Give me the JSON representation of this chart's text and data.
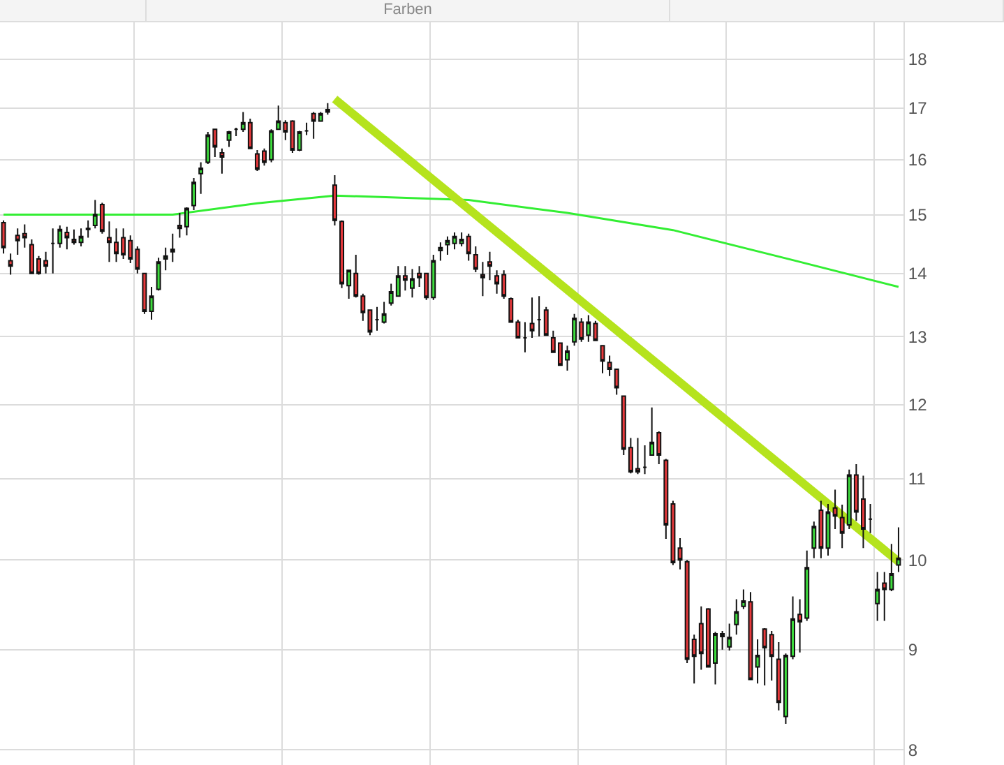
{
  "chart_data": {
    "type": "candlestick",
    "annotations": [
      "Farben"
    ],
    "categories": [
      null,
      null,
      null,
      null,
      null,
      null,
      null,
      null,
      null,
      null,
      null,
      null,
      null,
      null,
      null,
      null,
      null,
      null,
      null,
      null,
      null,
      null,
      null,
      null,
      null,
      null,
      null,
      null,
      null,
      null,
      null,
      null,
      null,
      null,
      null,
      null,
      null,
      null,
      null,
      null,
      null,
      null,
      null,
      null,
      null,
      null,
      null,
      null,
      null,
      null,
      null,
      null,
      null,
      null,
      null,
      null,
      null,
      null,
      null,
      null,
      null,
      null,
      null,
      null,
      null,
      null,
      null,
      null,
      null,
      null,
      null,
      null,
      null,
      null,
      null,
      null,
      null,
      null,
      null,
      null,
      null,
      null,
      null,
      null,
      null,
      null,
      null,
      null,
      null,
      null,
      null,
      null,
      null,
      null,
      null,
      null,
      null,
      null,
      null,
      null,
      null,
      null,
      null,
      null,
      null,
      null,
      null,
      null,
      null,
      null,
      null,
      null,
      null,
      null,
      null,
      null,
      null,
      null,
      null,
      null,
      null,
      null,
      null,
      null,
      null,
      null,
      null,
      null
    ],
    "ohlc": [
      [
        14.86,
        14.9,
        14.33,
        14.43
      ],
      [
        14.21,
        14.33,
        13.98,
        14.12
      ],
      [
        14.64,
        14.76,
        14.31,
        14.55
      ],
      [
        14.67,
        14.83,
        14.43,
        14.6
      ],
      [
        14.48,
        14.57,
        14.0,
        14.0
      ],
      [
        14.24,
        14.29,
        13.98,
        14.0
      ],
      [
        14.21,
        14.36,
        14.0,
        14.12
      ],
      [
        14.5,
        14.76,
        14.0,
        14.5
      ],
      [
        14.5,
        14.81,
        14.43,
        14.74
      ],
      [
        14.69,
        14.79,
        14.4,
        14.6
      ],
      [
        14.57,
        14.74,
        14.48,
        14.52
      ],
      [
        14.52,
        14.76,
        14.45,
        14.62
      ],
      [
        14.74,
        14.9,
        14.6,
        14.76
      ],
      [
        14.81,
        15.26,
        14.76,
        15.0
      ],
      [
        15.18,
        15.21,
        14.67,
        14.71
      ],
      [
        14.6,
        14.88,
        14.19,
        14.52
      ],
      [
        14.52,
        14.76,
        14.19,
        14.33
      ],
      [
        14.6,
        14.76,
        14.24,
        14.31
      ],
      [
        14.55,
        14.64,
        14.17,
        14.24
      ],
      [
        14.4,
        14.45,
        14.0,
        14.07
      ],
      [
        14.0,
        14.0,
        13.35,
        13.39
      ],
      [
        13.39,
        13.78,
        13.26,
        13.63
      ],
      [
        13.74,
        14.26,
        13.72,
        14.19
      ],
      [
        14.24,
        14.43,
        14.05,
        14.29
      ],
      [
        14.4,
        14.67,
        14.19,
        14.36
      ],
      [
        14.81,
        15.03,
        14.6,
        14.76
      ],
      [
        14.79,
        15.13,
        14.64,
        15.11
      ],
      [
        15.16,
        15.66,
        15.08,
        15.58
      ],
      [
        15.74,
        15.95,
        15.37,
        15.84
      ],
      [
        15.95,
        16.53,
        15.92,
        16.47
      ],
      [
        16.58,
        16.58,
        16.05,
        16.24
      ],
      [
        16.13,
        16.21,
        15.74,
        16.05
      ],
      [
        16.37,
        16.55,
        16.24,
        16.53
      ],
      [
        16.58,
        16.61,
        16.45,
        16.58
      ],
      [
        16.58,
        16.92,
        16.53,
        16.71
      ],
      [
        16.71,
        16.79,
        16.21,
        16.21
      ],
      [
        16.11,
        16.18,
        15.79,
        15.82
      ],
      [
        16.16,
        16.21,
        15.89,
        15.95
      ],
      [
        16.0,
        16.58,
        15.95,
        16.55
      ],
      [
        16.58,
        17.05,
        16.58,
        16.74
      ],
      [
        16.71,
        16.76,
        16.37,
        16.53
      ],
      [
        16.74,
        16.76,
        16.13,
        16.18
      ],
      [
        16.18,
        16.55,
        16.16,
        16.53
      ],
      [
        16.55,
        16.71,
        16.47,
        16.55
      ],
      [
        16.89,
        16.92,
        16.4,
        16.74
      ],
      [
        16.74,
        16.92,
        16.74,
        16.89
      ],
      [
        16.92,
        17.1,
        16.87,
        16.97
      ],
      [
        15.53,
        15.71,
        14.81,
        14.9
      ],
      [
        14.88,
        14.9,
        13.76,
        13.83
      ],
      [
        13.8,
        14.05,
        13.59,
        14.05
      ],
      [
        14.0,
        14.31,
        13.61,
        13.63
      ],
      [
        13.63,
        13.67,
        13.24,
        13.37
      ],
      [
        13.41,
        13.41,
        13.02,
        13.07
      ],
      [
        13.26,
        13.46,
        13.09,
        13.26
      ],
      [
        13.22,
        13.54,
        13.2,
        13.35
      ],
      [
        13.52,
        13.83,
        13.48,
        13.7
      ],
      [
        13.63,
        14.12,
        13.63,
        13.96
      ],
      [
        13.96,
        14.12,
        13.72,
        13.89
      ],
      [
        13.76,
        14.07,
        13.61,
        13.91
      ],
      [
        14.0,
        14.12,
        13.78,
        13.93
      ],
      [
        14.0,
        14.0,
        13.57,
        13.61
      ],
      [
        13.61,
        14.31,
        13.57,
        14.21
      ],
      [
        14.38,
        14.52,
        14.21,
        14.43
      ],
      [
        14.48,
        14.62,
        14.31,
        14.55
      ],
      [
        14.5,
        14.69,
        14.4,
        14.62
      ],
      [
        14.5,
        14.69,
        14.45,
        14.57
      ],
      [
        14.62,
        14.67,
        14.21,
        14.33
      ],
      [
        14.31,
        14.45,
        14.02,
        14.07
      ],
      [
        13.98,
        14.19,
        13.63,
        13.93
      ],
      [
        14.19,
        14.36,
        13.89,
        14.12
      ],
      [
        13.96,
        14.05,
        13.67,
        13.83
      ],
      [
        13.98,
        14.05,
        13.59,
        13.63
      ],
      [
        13.59,
        13.61,
        13.22,
        13.22
      ],
      [
        13.22,
        13.26,
        12.98,
        12.98
      ],
      [
        12.98,
        13.22,
        12.76,
        12.98
      ],
      [
        13.2,
        13.61,
        12.98,
        13.09
      ],
      [
        13.26,
        13.63,
        13.0,
        13.26
      ],
      [
        13.41,
        13.46,
        13.02,
        13.02
      ],
      [
        12.98,
        13.09,
        12.76,
        12.76
      ],
      [
        12.9,
        12.9,
        12.57,
        12.57
      ],
      [
        12.65,
        12.86,
        12.49,
        12.78
      ],
      [
        12.92,
        13.35,
        12.86,
        13.28
      ],
      [
        13.22,
        13.28,
        12.92,
        12.96
      ],
      [
        13.02,
        13.33,
        12.92,
        13.22
      ],
      [
        13.2,
        13.24,
        12.94,
        12.94
      ],
      [
        12.86,
        12.86,
        12.45,
        12.63
      ],
      [
        12.61,
        12.71,
        12.41,
        12.51
      ],
      [
        12.51,
        12.51,
        12.14,
        12.24
      ],
      [
        12.12,
        12.12,
        11.31,
        11.39
      ],
      [
        11.41,
        11.54,
        11.07,
        11.09
      ],
      [
        11.13,
        11.54,
        11.06,
        11.09
      ],
      [
        11.15,
        11.44,
        11.06,
        11.15
      ],
      [
        11.31,
        11.96,
        11.3,
        11.48
      ],
      [
        11.61,
        11.63,
        11.19,
        11.31
      ],
      [
        11.24,
        11.26,
        10.25,
        10.42
      ],
      [
        10.68,
        10.72,
        9.94,
        9.97
      ],
      [
        10.14,
        10.26,
        9.89,
        10.0
      ],
      [
        9.98,
        10.0,
        8.86,
        8.9
      ],
      [
        9.11,
        9.16,
        8.65,
        8.93
      ],
      [
        9.28,
        9.47,
        8.79,
        8.96
      ],
      [
        9.44,
        9.45,
        8.82,
        8.82
      ],
      [
        8.86,
        9.19,
        8.64,
        9.17
      ],
      [
        9.14,
        9.2,
        9.0,
        9.17
      ],
      [
        9.03,
        9.28,
        8.99,
        9.13
      ],
      [
        9.27,
        9.55,
        9.16,
        9.41
      ],
      [
        9.47,
        9.66,
        9.44,
        9.53
      ],
      [
        9.52,
        9.63,
        8.69,
        8.69
      ],
      [
        8.82,
        9.11,
        8.65,
        8.94
      ],
      [
        9.22,
        9.23,
        8.63,
        9.02
      ],
      [
        9.16,
        9.2,
        8.68,
        8.93
      ],
      [
        8.9,
        9.08,
        8.38,
        8.46
      ],
      [
        8.32,
        8.96,
        8.25,
        8.94
      ],
      [
        8.93,
        9.58,
        8.9,
        9.33
      ],
      [
        9.38,
        9.55,
        8.97,
        9.3
      ],
      [
        9.34,
        10.11,
        9.31,
        9.91
      ],
      [
        10.14,
        10.46,
        10.02,
        10.4
      ],
      [
        10.6,
        10.72,
        10.02,
        10.14
      ],
      [
        10.14,
        10.68,
        10.05,
        10.58
      ],
      [
        10.63,
        10.86,
        10.37,
        10.53
      ],
      [
        10.51,
        10.67,
        10.14,
        10.32
      ],
      [
        10.42,
        11.12,
        10.37,
        11.05
      ],
      [
        11.05,
        11.19,
        10.47,
        10.58
      ],
      [
        10.74,
        11.04,
        10.14,
        10.37
      ],
      [
        10.49,
        10.68,
        10.32,
        10.49
      ],
      [
        9.5,
        9.86,
        9.31,
        9.66
      ],
      [
        9.73,
        9.86,
        9.31,
        9.66
      ],
      [
        9.66,
        10.19,
        9.64,
        9.84
      ],
      [
        9.94,
        10.39,
        9.86,
        10.02
      ]
    ],
    "series": [
      {
        "type": "line",
        "color": "#33ee33",
        "values": [
          15.0,
          null,
          null,
          null,
          null,
          null,
          null,
          null,
          null,
          null,
          null,
          null,
          null,
          null,
          null,
          null,
          null,
          null,
          null,
          null,
          null,
          null,
          null,
          null,
          15.0,
          null,
          null,
          null,
          null,
          null,
          null,
          null,
          null,
          null,
          null,
          null,
          15.2,
          null,
          null,
          null,
          null,
          null,
          null,
          null,
          null,
          null,
          null,
          15.34,
          null,
          null,
          null,
          null,
          null,
          null,
          null,
          null,
          null,
          null,
          null,
          null,
          null,
          null,
          null,
          null,
          null,
          null,
          15.26,
          null,
          null,
          null,
          null,
          null,
          null,
          null,
          null,
          null,
          null,
          null,
          null,
          null,
          15.03,
          null,
          null,
          null,
          null,
          null,
          null,
          null,
          null,
          null,
          null,
          null,
          null,
          null,
          null,
          14.73,
          null,
          null,
          null,
          null,
          null,
          null,
          null,
          null,
          null,
          null,
          null,
          null,
          null,
          null,
          null,
          null,
          14.22,
          null,
          null,
          null,
          null,
          null,
          null,
          null,
          null,
          null,
          null,
          null,
          null,
          null,
          null,
          13.78
        ]
      },
      {
        "type": "line",
        "color": "#b5e31d",
        "values": [
          null,
          null,
          null,
          null,
          null,
          null,
          null,
          null,
          null,
          null,
          null,
          null,
          null,
          null,
          null,
          null,
          null,
          null,
          null,
          null,
          null,
          null,
          null,
          null,
          null,
          null,
          null,
          null,
          null,
          null,
          null,
          null,
          null,
          null,
          null,
          null,
          null,
          null,
          null,
          null,
          null,
          null,
          null,
          null,
          null,
          null,
          null,
          17.18,
          null,
          null,
          null,
          null,
          null,
          null,
          null,
          null,
          null,
          null,
          null,
          null,
          null,
          null,
          null,
          null,
          null,
          null,
          null,
          null,
          null,
          null,
          null,
          null,
          null,
          null,
          null,
          null,
          null,
          null,
          null,
          null,
          null,
          null,
          null,
          null,
          null,
          null,
          null,
          null,
          null,
          null,
          null,
          null,
          null,
          null,
          null,
          null,
          null,
          null,
          null,
          null,
          null,
          null,
          null,
          null,
          null,
          null,
          null,
          null,
          null,
          null,
          null,
          null,
          null,
          null,
          null,
          null,
          null,
          null,
          null,
          null,
          null,
          null,
          null,
          null,
          null,
          null,
          null,
          9.98
        ]
      }
    ],
    "log": true,
    "ylim": [
      7.86,
      18.8
    ],
    "yticks": [
      8,
      9,
      10,
      11,
      12,
      13,
      14,
      15,
      16,
      17,
      18
    ],
    "grid": true
  }
}
